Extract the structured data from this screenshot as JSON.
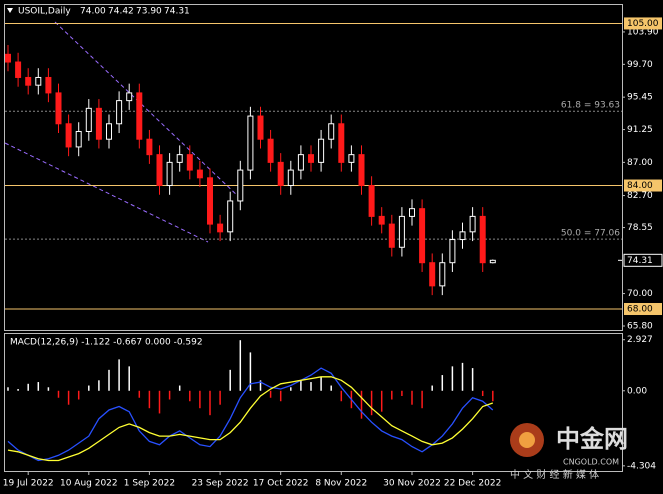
{
  "chart_data": [
    {
      "type": "candlestick",
      "title": "USOIL,Daily",
      "last_labels": {
        "open": "74.00",
        "high": "74.42",
        "low": "73.90",
        "close": "74.31"
      },
      "categories": [
        null,
        null,
        "19 Jul 2022",
        null,
        null,
        null,
        null,
        null,
        "10 Aug 2022",
        null,
        null,
        null,
        null,
        null,
        "1 Sep 2022",
        null,
        null,
        null,
        null,
        null,
        null,
        "23 Sep 2022",
        null,
        null,
        null,
        null,
        null,
        "17 Oct 2022",
        null,
        null,
        null,
        null,
        null,
        "8 Nov 2022",
        null,
        null,
        null,
        null,
        null,
        null,
        "30 Nov 2022",
        null,
        null,
        null,
        null,
        null,
        "22 Dec 2022",
        null,
        null
      ],
      "open": [
        101,
        100,
        98,
        97,
        98,
        96,
        92,
        89,
        91,
        94,
        90,
        92,
        95,
        96,
        90,
        88,
        84,
        87,
        88,
        86,
        85,
        79,
        78,
        82,
        86,
        93,
        90,
        87,
        84,
        86,
        88,
        87,
        90,
        92,
        87,
        88,
        84,
        80,
        79,
        76,
        80,
        81,
        74,
        71,
        74,
        77,
        78,
        80,
        74.0
      ],
      "high": [
        102.2,
        101.2,
        99.2,
        99.2,
        99.2,
        97.2,
        93.2,
        92.2,
        95.2,
        95.2,
        93.2,
        96.2,
        97.2,
        97.2,
        91.2,
        89.2,
        88.2,
        89.2,
        89.2,
        87.2,
        86.2,
        80.2,
        83.2,
        87.2,
        94.2,
        94.2,
        91.2,
        88.2,
        87.2,
        89.2,
        89.2,
        91.2,
        93.2,
        93.2,
        89.2,
        89.2,
        85.2,
        81.2,
        80.2,
        81.2,
        82.2,
        82.2,
        75.2,
        75.2,
        78.2,
        79.2,
        81.2,
        81.2,
        74.42
      ],
      "low": [
        98.8,
        96.8,
        95.8,
        95.8,
        94.8,
        90.8,
        87.8,
        87.8,
        89.8,
        88.8,
        88.8,
        90.8,
        93.8,
        88.8,
        86.8,
        82.8,
        82.8,
        85.8,
        84.8,
        83.8,
        77.8,
        76.8,
        76.8,
        80.8,
        84.8,
        88.8,
        85.8,
        82.8,
        82.8,
        84.8,
        85.8,
        85.8,
        88.8,
        85.8,
        85.8,
        82.8,
        78.8,
        77.8,
        74.8,
        74.8,
        78.8,
        72.8,
        69.8,
        69.8,
        72.8,
        75.8,
        76.8,
        72.8,
        73.9
      ],
      "close": [
        100,
        98,
        97,
        98,
        96,
        92,
        89,
        91,
        94,
        90,
        92,
        95,
        96,
        90,
        88,
        84,
        87,
        88,
        86,
        85,
        79,
        78,
        82,
        86,
        93,
        90,
        87,
        84,
        86,
        88,
        87,
        90,
        92,
        87,
        88,
        84,
        80,
        79,
        76,
        80,
        81,
        74,
        71,
        74,
        77,
        78,
        80,
        74,
        74.31
      ],
      "up_color": "#ffffff",
      "down_color": "#ff1a1a",
      "ylim": [
        65.28,
        107.26
      ],
      "yticks": [
        {
          "value": 103.9,
          "label": "103.90"
        },
        {
          "value": 99.7,
          "label": "99.70"
        },
        95.45,
        91.25,
        {
          "value": 87,
          "label": "87.00"
        },
        {
          "value": 82.7,
          "label": "82.70"
        },
        78.55,
        {
          "value": 70,
          "label": "70.00"
        },
        {
          "value": 65.8,
          "label": "65.80"
        }
      ],
      "levels": [
        {
          "value": 105,
          "label": "105.00"
        },
        {
          "value": 84,
          "label": "84.00"
        },
        {
          "value": 68,
          "label": "68.00"
        }
      ],
      "level_color": "#f5c56b",
      "annotations": [
        {
          "text": "61.8 = 93.63",
          "value": 93.63
        },
        {
          "text": "50.0 = 77.06",
          "value": 77.06
        }
      ]
    },
    {
      "type": "macd",
      "title": "MACD(12,26,9) -1.122 -0.667 0.000 -0.592",
      "histogram": [
        0.2,
        0.1,
        0.4,
        0.5,
        0.2,
        -0.4,
        -0.8,
        -0.5,
        0.3,
        0.6,
        1.2,
        1.8,
        1.4,
        -0.4,
        -1.0,
        -1.3,
        -0.5,
        0.3,
        -0.6,
        -1.0,
        -1.4,
        -0.8,
        1.2,
        2.9,
        2.2,
        0.6,
        -0.4,
        -0.6,
        0.2,
        0.6,
        0.5,
        0.8,
        0.3,
        -0.6,
        -1.0,
        -1.6,
        -1.4,
        -1.2,
        -0.5,
        -0.3,
        -0.8,
        -1.0,
        0.3,
        0.9,
        1.4,
        1.6,
        1.3,
        -0.3,
        -0.6
      ],
      "up_color": "#ffffff",
      "down_color": "#ff1a1a",
      "lines": [
        {
          "color": "#2850ff",
          "values": [
            -2.9,
            -3.4,
            -3.7,
            -4.0,
            -3.9,
            -3.7,
            -3.4,
            -3.0,
            -2.6,
            -1.6,
            -1.1,
            -0.9,
            -1.2,
            -2.3,
            -2.9,
            -3.1,
            -2.6,
            -2.3,
            -2.7,
            -3.1,
            -3.2,
            -2.6,
            -1.6,
            -0.4,
            0.4,
            0.5,
            0.2,
            0.1,
            0.3,
            0.6,
            0.9,
            1.3,
            1.0,
            0.2,
            -0.5,
            -1.2,
            -1.8,
            -2.3,
            -2.6,
            -2.8,
            -3.2,
            -3.5,
            -3.1,
            -2.6,
            -1.9,
            -1.0,
            -0.4,
            -0.6,
            -1.1
          ]
        },
        {
          "color": "#ffff33",
          "values": [
            -3.4,
            -3.5,
            -3.7,
            -3.9,
            -4.0,
            -4.0,
            -3.8,
            -3.6,
            -3.3,
            -2.9,
            -2.5,
            -2.1,
            -1.9,
            -2.1,
            -2.4,
            -2.6,
            -2.6,
            -2.5,
            -2.6,
            -2.7,
            -2.8,
            -2.8,
            -2.4,
            -1.8,
            -1.0,
            -0.3,
            0.1,
            0.4,
            0.5,
            0.6,
            0.7,
            0.8,
            0.8,
            0.6,
            0.2,
            -0.4,
            -1.0,
            -1.5,
            -2.0,
            -2.3,
            -2.6,
            -2.9,
            -3.1,
            -3.0,
            -2.7,
            -2.2,
            -1.6,
            -0.9,
            -0.7
          ]
        }
      ],
      "ylim": [
        -4.6,
        3.255
      ],
      "yticks": [
        2.927,
        {
          "value": 0,
          "label": "0.00"
        },
        -4.304
      ]
    }
  ],
  "watermark": {
    "brand": "中金网",
    "site": "CNGOLD.COM",
    "slogan": "中 文 财 经 新 媒 体"
  }
}
